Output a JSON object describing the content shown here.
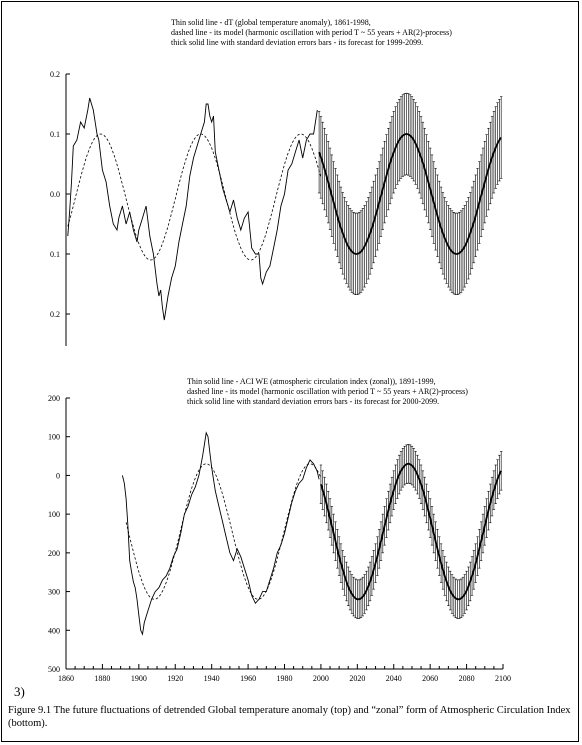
{
  "top_notes": [
    "Thin solid line - dT (global temperature anomaly), 1861-1998,",
    "dashed line - its model (harmonic oscillation with period T ~ 55 years + AR(2)-process)",
    "thick solid line with standard deviation errors bars - its forecast for 1999-2099."
  ],
  "bottom_notes": [
    "Thin solid line - ACI  WE (atmospheric circulation index (zonal)), 1891-1999,",
    "dashed line - its model (harmonic oscillation with period T ~ 55 years + AR(2)-process)",
    "thick solid line with standard deviation errors bars - its forecast for 2000-2099."
  ],
  "panel_label": "3)",
  "caption": "Figure 9.1 The future fluctuations of detrended Global temperature anomaly (top) and “zonal” form of Atmospheric Circulation Index (bottom).",
  "chart_data": [
    {
      "type": "line",
      "title": "",
      "xlabel": "",
      "ylabel": "",
      "xlim": [
        1860,
        2100
      ],
      "ylim": [
        -0.25,
        0.2
      ],
      "y_tick_labels": [
        "0.2",
        "0.1",
        "0.0",
        "0.1",
        "0.2"
      ],
      "y_tick_values": [
        0.2,
        0.1,
        0.0,
        -0.1,
        -0.2
      ],
      "grid": false,
      "series": [
        {
          "style": "thin-solid",
          "x": [
            1861,
            1862,
            1863,
            1864,
            1866,
            1868,
            1870,
            1872,
            1873,
            1875,
            1877,
            1878,
            1880,
            1882,
            1884,
            1886,
            1888,
            1889,
            1891,
            1893,
            1895,
            1897,
            1899,
            1900,
            1902,
            1904,
            1906,
            1908,
            1910,
            1911,
            1912,
            1913,
            1914,
            1916,
            1918,
            1920,
            1922,
            1924,
            1926,
            1928,
            1930,
            1932,
            1934,
            1936,
            1937,
            1938,
            1939,
            1940,
            1941,
            1942,
            1944,
            1946,
            1948,
            1950,
            1952,
            1954,
            1956,
            1958,
            1960,
            1962,
            1964,
            1966,
            1967,
            1968,
            1970,
            1972,
            1974,
            1976,
            1978,
            1980,
            1982,
            1984,
            1986,
            1988,
            1990,
            1992,
            1994,
            1996,
            1998
          ],
          "y": [
            -0.07,
            -0.03,
            0.02,
            0.08,
            0.09,
            0.12,
            0.11,
            0.14,
            0.16,
            0.14,
            0.1,
            0.09,
            0.04,
            0.02,
            -0.02,
            -0.05,
            -0.06,
            -0.04,
            -0.02,
            -0.05,
            -0.03,
            -0.06,
            -0.08,
            -0.06,
            -0.04,
            -0.02,
            -0.07,
            -0.1,
            -0.15,
            -0.17,
            -0.16,
            -0.19,
            -0.21,
            -0.17,
            -0.14,
            -0.12,
            -0.08,
            -0.05,
            -0.02,
            0.03,
            0.06,
            0.08,
            0.1,
            0.12,
            0.15,
            0.15,
            0.13,
            0.12,
            0.13,
            0.07,
            0.04,
            0.01,
            -0.01,
            -0.03,
            -0.01,
            -0.04,
            -0.06,
            -0.04,
            -0.03,
            -0.09,
            -0.1,
            -0.1,
            -0.14,
            -0.15,
            -0.13,
            -0.12,
            -0.09,
            -0.06,
            -0.02,
            0.0,
            0.04,
            0.05,
            0.07,
            0.09,
            0.06,
            0.09,
            0.1,
            0.1,
            0.14
          ]
        },
        {
          "style": "dashed",
          "model": "harmonic",
          "x_start": 1861,
          "x_end": 2000,
          "offset": -0.005,
          "amplitude": 0.105,
          "period": 55,
          "peak_year": 1879
        },
        {
          "style": "thick-solid-error-bars",
          "model": "harmonic",
          "x_start": 1999,
          "x_end": 2099,
          "offset": 0.0,
          "amplitude": 0.1,
          "period": 55,
          "peak_year": 2047,
          "error": 0.068
        }
      ]
    },
    {
      "type": "line",
      "title": "",
      "xlabel": "",
      "ylabel": "",
      "xlim": [
        1860,
        2100
      ],
      "ylim": [
        -500,
        200
      ],
      "y_tick_labels": [
        "200",
        "100",
        "0",
        "100",
        "200",
        "300",
        "400",
        "500"
      ],
      "y_tick_values": [
        200,
        100,
        0,
        -100,
        -200,
        -300,
        -400,
        -500
      ],
      "x_tick_labels": [
        "1860",
        "1880",
        "1900",
        "1920",
        "1940",
        "1960",
        "1980",
        "2000",
        "2020",
        "2040",
        "2060",
        "2080",
        "2100"
      ],
      "x_tick_values": [
        1860,
        1880,
        1900,
        1920,
        1940,
        1960,
        1980,
        2000,
        2020,
        2040,
        2060,
        2080,
        2100
      ],
      "grid": false,
      "series": [
        {
          "style": "thin-solid",
          "x": [
            1891,
            1892,
            1893,
            1894,
            1895,
            1896,
            1897,
            1898,
            1899,
            1900,
            1901,
            1902,
            1903,
            1905,
            1907,
            1909,
            1911,
            1913,
            1915,
            1917,
            1919,
            1921,
            1923,
            1925,
            1927,
            1929,
            1931,
            1933,
            1935,
            1936,
            1937,
            1938,
            1939,
            1940,
            1941,
            1942,
            1944,
            1946,
            1948,
            1950,
            1952,
            1954,
            1956,
            1958,
            1960,
            1962,
            1964,
            1966,
            1968,
            1970,
            1972,
            1974,
            1976,
            1978,
            1980,
            1982,
            1984,
            1986,
            1988,
            1990,
            1992,
            1994,
            1996,
            1998,
            1999
          ],
          "y": [
            0,
            -20,
            -60,
            -130,
            -220,
            -250,
            -275,
            -290,
            -320,
            -360,
            -400,
            -410,
            -380,
            -350,
            -320,
            -300,
            -290,
            -270,
            -260,
            -240,
            -210,
            -190,
            -150,
            -100,
            -80,
            -50,
            -30,
            0,
            50,
            80,
            110,
            100,
            60,
            20,
            -10,
            -40,
            -80,
            -120,
            -160,
            -200,
            -220,
            -190,
            -210,
            -240,
            -270,
            -310,
            -330,
            -320,
            -300,
            -300,
            -270,
            -240,
            -200,
            -180,
            -150,
            -110,
            -70,
            -40,
            -20,
            -10,
            20,
            40,
            30,
            10,
            -10
          ]
        },
        {
          "style": "dashed",
          "model": "harmonic",
          "x_start": 1893,
          "x_end": 2000,
          "offset": -145,
          "amplitude": 175,
          "period": 57,
          "peak_year": 1937
        },
        {
          "style": "thick-solid-error-bars",
          "model": "harmonic",
          "x_start": 2000,
          "x_end": 2099,
          "offset": -145,
          "amplitude": 175,
          "period": 55,
          "peak_year": 2048,
          "error": 50
        }
      ]
    }
  ]
}
